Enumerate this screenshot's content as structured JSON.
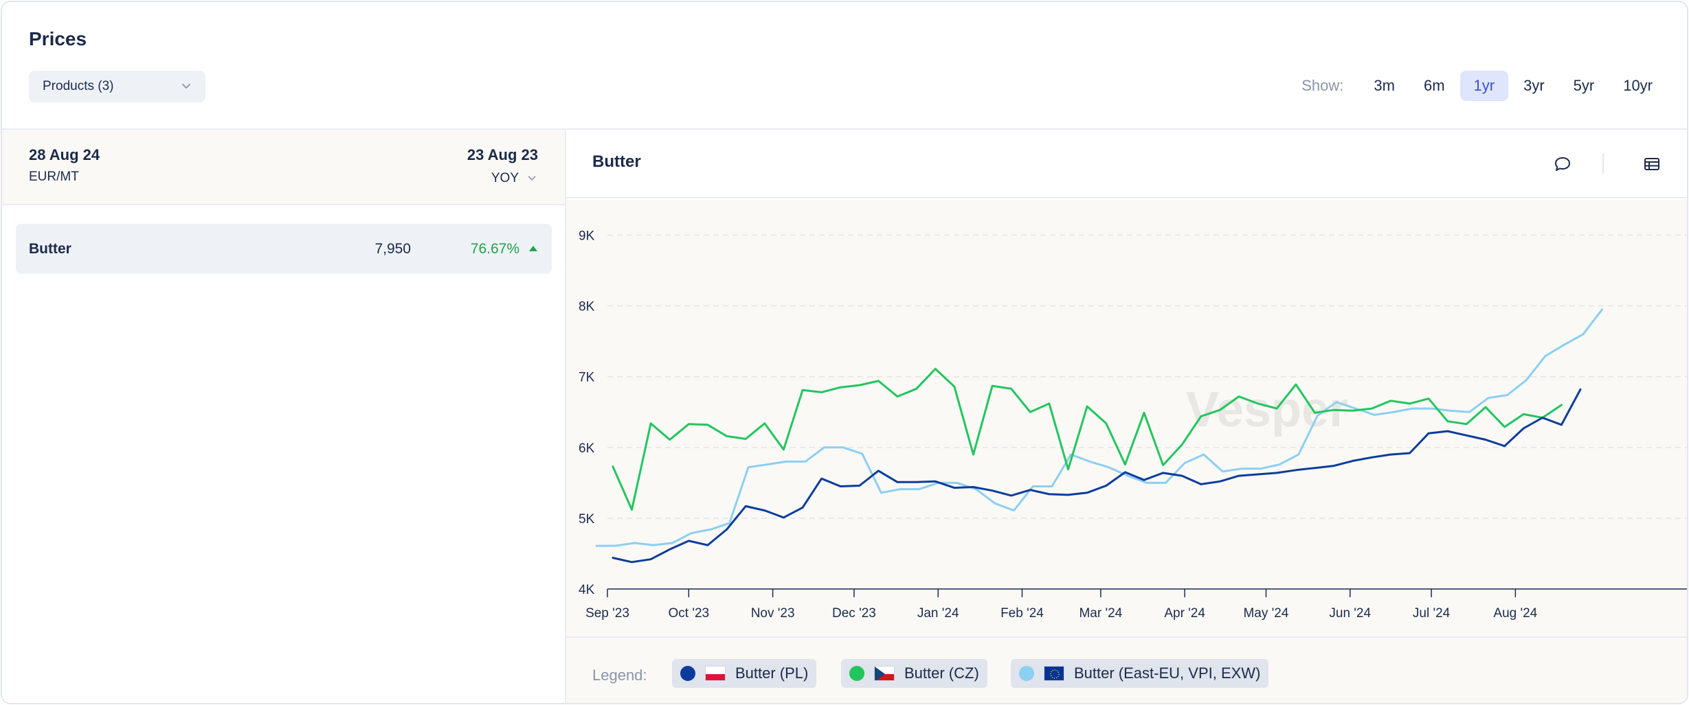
{
  "header": {
    "title": "Prices",
    "products_label": "Products (3)",
    "show_label": "Show:",
    "ranges": [
      "3m",
      "6m",
      "1yr",
      "3yr",
      "5yr",
      "10yr"
    ],
    "active_range": "1yr"
  },
  "left": {
    "current_date": "28 Aug 24",
    "unit": "EUR/MT",
    "compare_date": "23 Aug 23",
    "compare_mode": "YOY",
    "rows": [
      {
        "name": "Butter",
        "value": "7,950",
        "change": "76.67%",
        "trend": "up",
        "trend_color": "#1fa34a"
      }
    ]
  },
  "chart": {
    "title": "Butter",
    "comment_icon": "comment-icon",
    "table_icon": "table-icon",
    "watermark": "Vesper"
  },
  "legend": {
    "label": "Legend:",
    "items": [
      {
        "name": "Butter (PL)",
        "color": "#0b3c9c",
        "flag": "PL"
      },
      {
        "name": "Butter (CZ)",
        "color": "#22c55e",
        "flag": "CZ"
      },
      {
        "name": "Butter (East-EU, VPI, EXW)",
        "color": "#8ccff0",
        "flag": "EU"
      }
    ]
  },
  "chart_data": {
    "type": "line",
    "title": "Butter",
    "xlabel": "",
    "ylabel": "",
    "x_start": "2023-09-01",
    "x_end": "2024-09-30",
    "ylim": [
      4000,
      9500
    ],
    "yticks": [
      4000,
      5000,
      6000,
      7000,
      8000,
      9000
    ],
    "ytick_labels": [
      "4K",
      "5K",
      "6K",
      "7K",
      "8K",
      "9K"
    ],
    "xticks": [
      "2023-09-01",
      "2023-10-01",
      "2023-11-01",
      "2023-12-01",
      "2024-01-01",
      "2024-02-01",
      "2024-03-01",
      "2024-04-01",
      "2024-05-01",
      "2024-06-01",
      "2024-07-01",
      "2024-08-01"
    ],
    "xtick_labels": [
      "Sep '23",
      "Oct '23",
      "Nov '23",
      "Dec '23",
      "Jan '24",
      "Feb '24",
      "Mar '24",
      "Apr '24",
      "May '24",
      "Jun '24",
      "Jul '24",
      "Aug '24"
    ],
    "grid": "horizontal dashed",
    "series": [
      {
        "name": "Butter (PL)",
        "color": "#0b3c9c",
        "points": [
          [
            "2023-09-03",
            4440
          ],
          [
            "2023-09-10",
            4380
          ],
          [
            "2023-09-17",
            4420
          ],
          [
            "2023-09-24",
            4560
          ],
          [
            "2023-10-01",
            4680
          ],
          [
            "2023-10-08",
            4620
          ],
          [
            "2023-10-15",
            4840
          ],
          [
            "2023-10-22",
            5170
          ],
          [
            "2023-10-29",
            5110
          ],
          [
            "2023-11-05",
            5010
          ],
          [
            "2023-11-12",
            5150
          ],
          [
            "2023-11-19",
            5560
          ],
          [
            "2023-11-26",
            5450
          ],
          [
            "2023-12-03",
            5460
          ],
          [
            "2023-12-10",
            5670
          ],
          [
            "2023-12-17",
            5510
          ],
          [
            "2023-12-24",
            5510
          ],
          [
            "2023-12-31",
            5520
          ],
          [
            "2024-01-07",
            5430
          ],
          [
            "2024-01-14",
            5440
          ],
          [
            "2024-01-21",
            5390
          ],
          [
            "2024-01-28",
            5320
          ],
          [
            "2024-02-04",
            5400
          ],
          [
            "2024-02-11",
            5340
          ],
          [
            "2024-02-18",
            5330
          ],
          [
            "2024-02-25",
            5360
          ],
          [
            "2024-03-03",
            5460
          ],
          [
            "2024-03-10",
            5650
          ],
          [
            "2024-03-17",
            5540
          ],
          [
            "2024-03-24",
            5640
          ],
          [
            "2024-03-31",
            5600
          ],
          [
            "2024-04-07",
            5480
          ],
          [
            "2024-04-14",
            5520
          ],
          [
            "2024-04-21",
            5600
          ],
          [
            "2024-04-28",
            5620
          ],
          [
            "2024-05-05",
            5640
          ],
          [
            "2024-05-12",
            5680
          ],
          [
            "2024-05-19",
            5710
          ],
          [
            "2024-05-26",
            5740
          ],
          [
            "2024-06-02",
            5810
          ],
          [
            "2024-06-09",
            5860
          ],
          [
            "2024-06-16",
            5900
          ],
          [
            "2024-06-23",
            5920
          ],
          [
            "2024-06-30",
            6200
          ],
          [
            "2024-07-07",
            6230
          ],
          [
            "2024-07-14",
            6170
          ],
          [
            "2024-07-21",
            6110
          ],
          [
            "2024-07-28",
            6020
          ],
          [
            "2024-08-04",
            6270
          ],
          [
            "2024-08-11",
            6420
          ],
          [
            "2024-08-18",
            6320
          ],
          [
            "2024-08-25",
            6820
          ]
        ]
      },
      {
        "name": "Butter (CZ)",
        "color": "#22c55e",
        "points": [
          [
            "2023-09-03",
            5730
          ],
          [
            "2023-09-10",
            5120
          ],
          [
            "2023-09-17",
            6340
          ],
          [
            "2023-09-24",
            6110
          ],
          [
            "2023-10-01",
            6330
          ],
          [
            "2023-10-08",
            6320
          ],
          [
            "2023-10-15",
            6160
          ],
          [
            "2023-10-22",
            6120
          ],
          [
            "2023-10-29",
            6340
          ],
          [
            "2023-11-05",
            5970
          ],
          [
            "2023-11-12",
            6810
          ],
          [
            "2023-11-19",
            6780
          ],
          [
            "2023-11-26",
            6850
          ],
          [
            "2023-12-03",
            6880
          ],
          [
            "2023-12-10",
            6940
          ],
          [
            "2023-12-17",
            6720
          ],
          [
            "2023-12-24",
            6830
          ],
          [
            "2023-12-31",
            7110
          ],
          [
            "2024-01-07",
            6860
          ],
          [
            "2024-01-14",
            5900
          ],
          [
            "2024-01-21",
            6870
          ],
          [
            "2024-01-28",
            6830
          ],
          [
            "2024-02-04",
            6500
          ],
          [
            "2024-02-11",
            6620
          ],
          [
            "2024-02-18",
            5690
          ],
          [
            "2024-02-25",
            6580
          ],
          [
            "2024-03-03",
            6340
          ],
          [
            "2024-03-10",
            5760
          ],
          [
            "2024-03-17",
            6490
          ],
          [
            "2024-03-24",
            5750
          ],
          [
            "2024-03-31",
            6040
          ],
          [
            "2024-04-07",
            6440
          ],
          [
            "2024-04-14",
            6530
          ],
          [
            "2024-04-21",
            6720
          ],
          [
            "2024-04-28",
            6620
          ],
          [
            "2024-05-05",
            6550
          ],
          [
            "2024-05-12",
            6890
          ],
          [
            "2024-05-19",
            6490
          ],
          [
            "2024-05-26",
            6530
          ],
          [
            "2024-06-02",
            6520
          ],
          [
            "2024-06-09",
            6550
          ],
          [
            "2024-06-16",
            6660
          ],
          [
            "2024-06-23",
            6620
          ],
          [
            "2024-06-30",
            6690
          ],
          [
            "2024-07-07",
            6370
          ],
          [
            "2024-07-14",
            6330
          ],
          [
            "2024-07-21",
            6570
          ],
          [
            "2024-07-28",
            6290
          ],
          [
            "2024-08-04",
            6470
          ],
          [
            "2024-08-11",
            6420
          ],
          [
            "2024-08-18",
            6600
          ]
        ]
      },
      {
        "name": "Butter (East-EU, VPI, EXW)",
        "color": "#8ccff0",
        "points": [
          [
            "2023-08-28",
            4610
          ],
          [
            "2023-09-04",
            4610
          ],
          [
            "2023-09-11",
            4650
          ],
          [
            "2023-09-18",
            4620
          ],
          [
            "2023-09-25",
            4650
          ],
          [
            "2023-10-02",
            4790
          ],
          [
            "2023-10-09",
            4840
          ],
          [
            "2023-10-16",
            4930
          ],
          [
            "2023-10-23",
            5720
          ],
          [
            "2023-10-30",
            5760
          ],
          [
            "2023-11-06",
            5800
          ],
          [
            "2023-11-13",
            5800
          ],
          [
            "2023-11-20",
            6000
          ],
          [
            "2023-11-27",
            6000
          ],
          [
            "2023-12-04",
            5910
          ],
          [
            "2023-12-11",
            5360
          ],
          [
            "2023-12-18",
            5410
          ],
          [
            "2023-12-25",
            5410
          ],
          [
            "2024-01-01",
            5500
          ],
          [
            "2024-01-08",
            5500
          ],
          [
            "2024-01-15",
            5410
          ],
          [
            "2024-01-22",
            5210
          ],
          [
            "2024-01-29",
            5110
          ],
          [
            "2024-02-05",
            5450
          ],
          [
            "2024-02-12",
            5450
          ],
          [
            "2024-02-19",
            5900
          ],
          [
            "2024-02-26",
            5800
          ],
          [
            "2024-03-04",
            5720
          ],
          [
            "2024-03-11",
            5600
          ],
          [
            "2024-03-18",
            5500
          ],
          [
            "2024-03-25",
            5500
          ],
          [
            "2024-04-01",
            5780
          ],
          [
            "2024-04-08",
            5900
          ],
          [
            "2024-04-15",
            5660
          ],
          [
            "2024-04-22",
            5700
          ],
          [
            "2024-04-29",
            5700
          ],
          [
            "2024-05-06",
            5760
          ],
          [
            "2024-05-13",
            5900
          ],
          [
            "2024-05-20",
            6450
          ],
          [
            "2024-05-27",
            6640
          ],
          [
            "2024-06-03",
            6550
          ],
          [
            "2024-06-10",
            6460
          ],
          [
            "2024-06-17",
            6500
          ],
          [
            "2024-06-24",
            6550
          ],
          [
            "2024-07-01",
            6550
          ],
          [
            "2024-07-08",
            6520
          ],
          [
            "2024-07-15",
            6500
          ],
          [
            "2024-07-22",
            6700
          ],
          [
            "2024-07-29",
            6740
          ],
          [
            "2024-08-05",
            6950
          ],
          [
            "2024-08-12",
            7290
          ],
          [
            "2024-08-19",
            7450
          ],
          [
            "2024-08-26",
            7600
          ],
          [
            "2024-09-02",
            7950
          ]
        ]
      }
    ]
  }
}
